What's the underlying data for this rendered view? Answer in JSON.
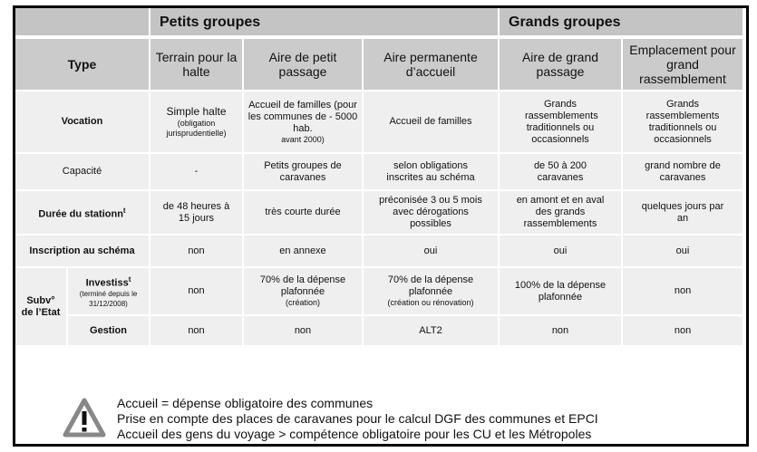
{
  "groups": {
    "petits": "Petits groupes",
    "grands": "Grands groupes"
  },
  "header": {
    "type": "Type",
    "cols": [
      "Terrain pour la halte",
      "Aire de petit passage",
      "Aire permanente d’accueil",
      "Aire de grand passage",
      "Emplacement pour grand rassemblement"
    ]
  },
  "rows": {
    "vocation": {
      "label": "Vocation",
      "c1": "Simple halte",
      "c1_note": "(obligation jurisprudentielle)",
      "c2": "Accueil de familles (pour les communes de - 5000 hab.",
      "c2_note": "avant 2000)",
      "c3": "Accueil de familles",
      "c4": "Grands rassemblements traditionnels ou occasionnels",
      "c5": "Grands rassemblements traditionnels ou occasionnels"
    },
    "capacite": {
      "label": "Capacité",
      "c1": "-",
      "c2": "Petits groupes de caravanes",
      "c3": "selon obligations inscrites au schéma",
      "c4": "de 50 à 200 caravanes",
      "c5": "grand nombre de caravanes"
    },
    "duree": {
      "label": "Durée du stationn",
      "label_sup": "t",
      "c1": "de 48 heures à 15 jours",
      "c2": "très courte durée",
      "c3": "préconisée 3 ou 5 mois avec dérogations possibles",
      "c4": "en amont et en aval des grands rassemblements",
      "c5": "quelques jours par an"
    },
    "inscription": {
      "label": "Inscription au schéma",
      "c1": "non",
      "c2": "en annexe",
      "c3": "oui",
      "c4": "oui",
      "c5": "oui"
    },
    "subv": {
      "label": "Subv° de l’Etat",
      "investiss": {
        "label": "Investiss",
        "label_sup": "t",
        "note": "(terminé depuis le 31/12/2008)",
        "c1": "non",
        "c2": "70% de la dépense plafonnée",
        "c2_note": "(création)",
        "c3": "70% de la dépense plafonnée",
        "c3_note": "(création ou rénovation)",
        "c4": "100% de la dépense plafonnée",
        "c5": "non"
      },
      "gestion": {
        "label": "Gestion",
        "c1": "non",
        "c2": "non",
        "c3": "ALT2",
        "c4": "non",
        "c5": "non"
      }
    }
  },
  "notes": [
    "Accueil = dépense obligatoire des communes",
    "Prise en compte des places de caravanes pour le calcul DGF des communes et EPCI",
    "Accueil des gens du voyage > compétence obligatoire pour les CU et les Métropoles"
  ],
  "icons": {
    "warning": "warning-triangle-icon"
  }
}
